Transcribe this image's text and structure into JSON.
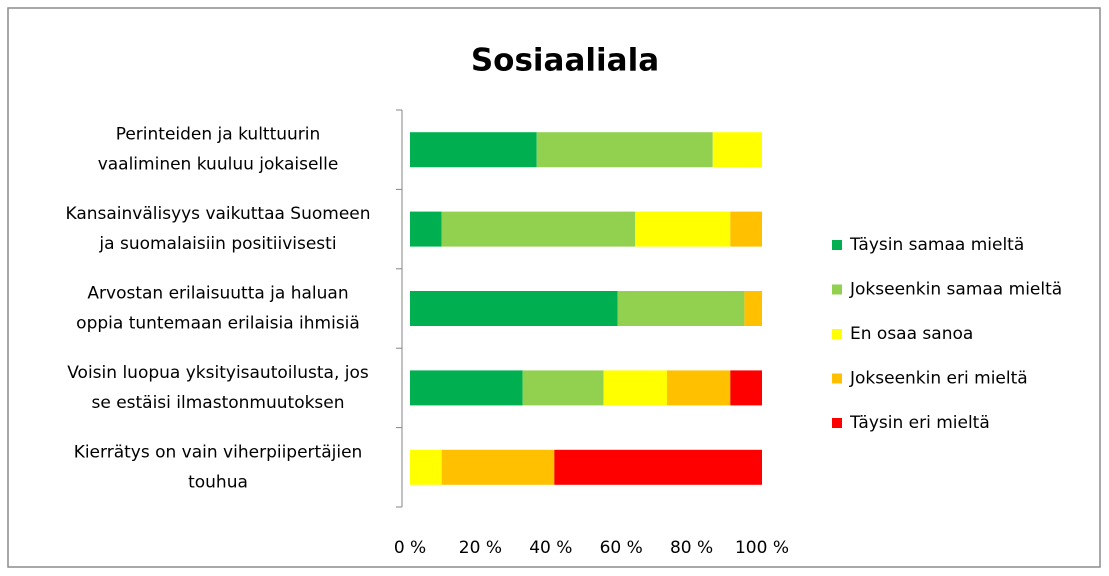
{
  "chart_data": {
    "type": "stacked_barh",
    "title": "Sosiaaliala",
    "categories": [
      [
        "Perinteiden ja kulttuurin",
        "vaaliminen kuuluu jokaiselle"
      ],
      [
        "Kansainvälisyys vaikuttaa Suomeen",
        "ja suomalaisiin positiivisesti"
      ],
      [
        "Arvostan erilaisuutta ja haluan",
        "oppia tuntemaan erilaisia ihmisiä"
      ],
      [
        "Voisin luopua yksityisautoilusta, jos",
        "se estäisi ilmastonmuutoksen"
      ],
      [
        "Kierrätys on vain viherpiipertäjien",
        "touhua"
      ]
    ],
    "series": [
      {
        "name": "Täysin samaa mieltä",
        "color": "#00b050",
        "values": [
          36,
          9,
          59,
          32,
          0
        ]
      },
      {
        "name": "Jokseenkin samaa mieltä",
        "color": "#92d050",
        "values": [
          50,
          55,
          36,
          23,
          0
        ]
      },
      {
        "name": "En osaa sanoa",
        "color": "#ffff00",
        "values": [
          14,
          27,
          0,
          18,
          9
        ]
      },
      {
        "name": "Jokseenkin eri mieltä",
        "color": "#ffc000",
        "values": [
          0,
          9,
          5,
          18,
          32
        ]
      },
      {
        "name": "Täysin eri mieltä",
        "color": "#ff0000",
        "values": [
          0,
          0,
          0,
          9,
          59
        ]
      }
    ],
    "xlim": [
      0,
      100
    ],
    "xticks": [
      {
        "value": 0,
        "label": "0 %"
      },
      {
        "value": 20,
        "label": "20 %"
      },
      {
        "value": 40,
        "label": "40 %"
      },
      {
        "value": 60,
        "label": "60 %"
      },
      {
        "value": 80,
        "label": "80 %"
      },
      {
        "value": 100,
        "label": "100 %"
      }
    ],
    "legend": "right"
  }
}
